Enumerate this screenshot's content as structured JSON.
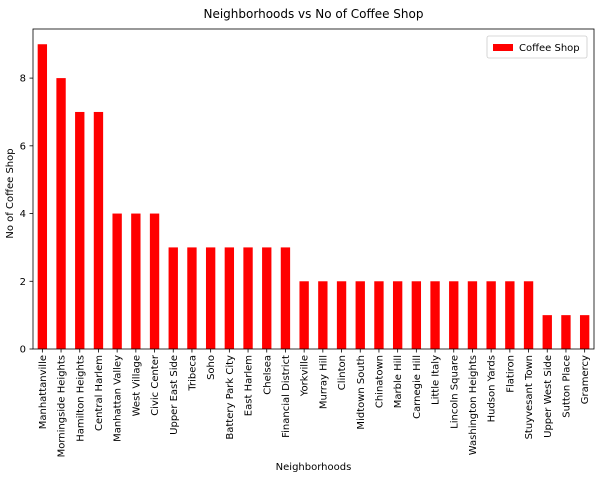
{
  "chart_data": {
    "type": "bar",
    "title": "Neighborhoods vs No of Coffee Shop",
    "xlabel": "Neighborhoods",
    "ylabel": "No of Coffee Shop",
    "ylim": [
      0,
      9.45
    ],
    "yticks": [
      0,
      2,
      4,
      6,
      8
    ],
    "grid": false,
    "legend_position": "top-right",
    "series": [
      {
        "name": "Coffee Shop",
        "color": "#ff0000",
        "values": [
          9,
          8,
          7,
          7,
          4,
          4,
          4,
          3,
          3,
          3,
          3,
          3,
          3,
          3,
          2,
          2,
          2,
          2,
          2,
          2,
          2,
          2,
          2,
          2,
          2,
          2,
          2,
          1,
          1,
          1
        ]
      }
    ],
    "categories": [
      "Manhattanville",
      "Morningside Heights",
      "Hamilton Heights",
      "Central Harlem",
      "Manhattan Valley",
      "West Village",
      "Civic Center",
      "Upper East Side",
      "Tribeca",
      "Soho",
      "Battery Park City",
      "East Harlem",
      "Chelsea",
      "Financial District",
      "Yorkville",
      "Murray Hill",
      "Clinton",
      "Midtown South",
      "Chinatown",
      "Marble Hill",
      "Carnegie Hill",
      "Little Italy",
      "Lincoln Square",
      "Washington Heights",
      "Hudson Yards",
      "Flatiron",
      "Stuyvesant Town",
      "Upper West Side",
      "Sutton Place",
      "Gramercy"
    ]
  }
}
